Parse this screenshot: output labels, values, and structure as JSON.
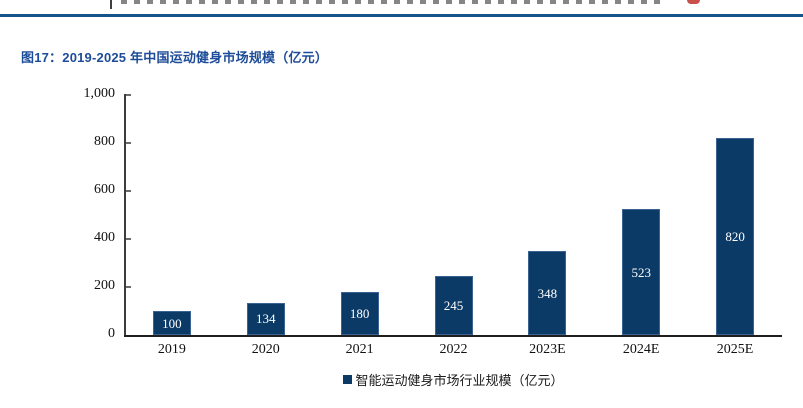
{
  "page": {
    "background": "#ffffff",
    "clipped_header": {
      "divider_color": "#3f3f3f",
      "logo_fragment_color": "#c9504b"
    },
    "divider_rule_color": "#145488"
  },
  "figure": {
    "title": "图17：2019-2025 年中国运动健身市场规模（亿元）",
    "title_color": "#1d4c99"
  },
  "chart_data": {
    "type": "bar",
    "title": "图17：2019-2025 年中国运动健身市场规模（亿元）",
    "categories": [
      "2019",
      "2020",
      "2021",
      "2022",
      "2023E",
      "2024E",
      "2025E"
    ],
    "values": [
      100,
      134,
      180,
      245,
      348,
      523,
      820
    ],
    "bar_labels": [
      "100",
      "134",
      "180",
      "245",
      "348",
      "523",
      "820"
    ],
    "legend": [
      "智能运动健身市场行业规模（亿元）"
    ],
    "legend_position": "bottom",
    "xlabel": "",
    "ylabel": "",
    "ylim": [
      0,
      1000
    ],
    "yticks": [
      0,
      200,
      400,
      600,
      800,
      1000
    ],
    "ytick_labels": [
      "0",
      "200",
      "400",
      "600",
      "800",
      "1,000"
    ],
    "grid": false,
    "bar_color": "#0b3a67",
    "bar_border_color": "#3a6292",
    "value_label_color": "#ffffff"
  },
  "legend": {
    "marker_color": "#0b3a67",
    "label": "智能运动健身市场行业规模（亿元）"
  }
}
